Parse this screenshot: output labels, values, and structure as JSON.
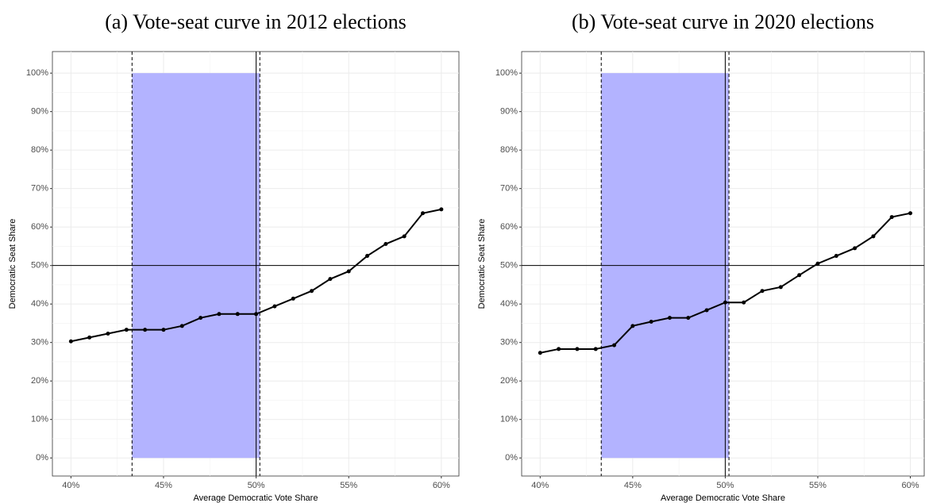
{
  "chart_data": [
    {
      "type": "line",
      "title": "(a) Vote-seat curve in 2012 elections",
      "x_label": "Average Democratic Vote Share",
      "y_label": "Democratic Seat Share",
      "x": [
        40,
        41,
        42,
        43,
        44,
        45,
        46,
        47,
        48,
        49,
        50,
        51,
        52,
        53,
        54,
        55,
        56,
        57,
        58,
        59,
        60
      ],
      "values": [
        30.3,
        31.3,
        32.3,
        33.3,
        33.3,
        33.3,
        34.3,
        36.4,
        37.4,
        37.4,
        37.4,
        39.4,
        41.4,
        43.4,
        46.5,
        48.5,
        52.5,
        55.6,
        57.6,
        63.6,
        64.6
      ],
      "color": "#000000",
      "shade": {
        "xmin": 43.3,
        "xmax": 50.2,
        "ymin": 0,
        "ymax": 100,
        "color": "#b3b3ff"
      },
      "dashed_x": [
        43.3,
        50.2
      ],
      "ref_x": 50,
      "ref_y": 50,
      "xlim": [
        39,
        60.95
      ],
      "ylim": [
        -4.7,
        105.6
      ],
      "xticks": [
        {
          "value": 40,
          "label": "40%"
        },
        {
          "value": 45,
          "label": "45%"
        },
        {
          "value": 50,
          "label": "50%"
        },
        {
          "value": 55,
          "label": "55%"
        },
        {
          "value": 60,
          "label": "60%"
        }
      ],
      "yticks": [
        {
          "value": 0,
          "label": "0%"
        },
        {
          "value": 10,
          "label": "10%"
        },
        {
          "value": 20,
          "label": "20%"
        },
        {
          "value": 30,
          "label": "30%"
        },
        {
          "value": 40,
          "label": "40%"
        },
        {
          "value": 50,
          "label": "50%"
        },
        {
          "value": 60,
          "label": "60%"
        },
        {
          "value": 70,
          "label": "70%"
        },
        {
          "value": 80,
          "label": "80%"
        },
        {
          "value": 90,
          "label": "90%"
        },
        {
          "value": 100,
          "label": "100%"
        }
      ],
      "grid": true
    },
    {
      "type": "line",
      "title": "(b) Vote-seat curve in 2020 elections",
      "x_label": "Average Democratic Vote Share",
      "y_label": "Democratic Seat Share",
      "x": [
        40,
        41,
        42,
        43,
        44,
        45,
        46,
        47,
        48,
        49,
        50,
        51,
        52,
        53,
        54,
        55,
        56,
        57,
        58,
        59,
        60
      ],
      "values": [
        27.3,
        28.3,
        28.3,
        28.3,
        29.3,
        34.3,
        35.4,
        36.4,
        36.4,
        38.4,
        40.4,
        40.4,
        43.4,
        44.4,
        47.5,
        50.5,
        52.5,
        54.5,
        57.6,
        62.6,
        63.6
      ],
      "color": "#000000",
      "shade": {
        "xmin": 43.3,
        "xmax": 50.2,
        "ymin": 0,
        "ymax": 100,
        "color": "#b3b3ff"
      },
      "dashed_x": [
        43.3,
        50.2
      ],
      "ref_x": 50,
      "ref_y": 50,
      "xlim": [
        39,
        60.75
      ],
      "ylim": [
        -4.7,
        105.6
      ],
      "xticks": [
        {
          "value": 40,
          "label": "40%"
        },
        {
          "value": 45,
          "label": "45%"
        },
        {
          "value": 50,
          "label": "50%"
        },
        {
          "value": 55,
          "label": "55%"
        },
        {
          "value": 60,
          "label": "60%"
        }
      ],
      "yticks": [
        {
          "value": 0,
          "label": "0%"
        },
        {
          "value": 10,
          "label": "10%"
        },
        {
          "value": 20,
          "label": "20%"
        },
        {
          "value": 30,
          "label": "30%"
        },
        {
          "value": 40,
          "label": "40%"
        },
        {
          "value": 50,
          "label": "50%"
        },
        {
          "value": 60,
          "label": "60%"
        },
        {
          "value": 70,
          "label": "70%"
        },
        {
          "value": 80,
          "label": "80%"
        },
        {
          "value": 90,
          "label": "90%"
        },
        {
          "value": 100,
          "label": "100%"
        }
      ],
      "grid": true
    }
  ]
}
